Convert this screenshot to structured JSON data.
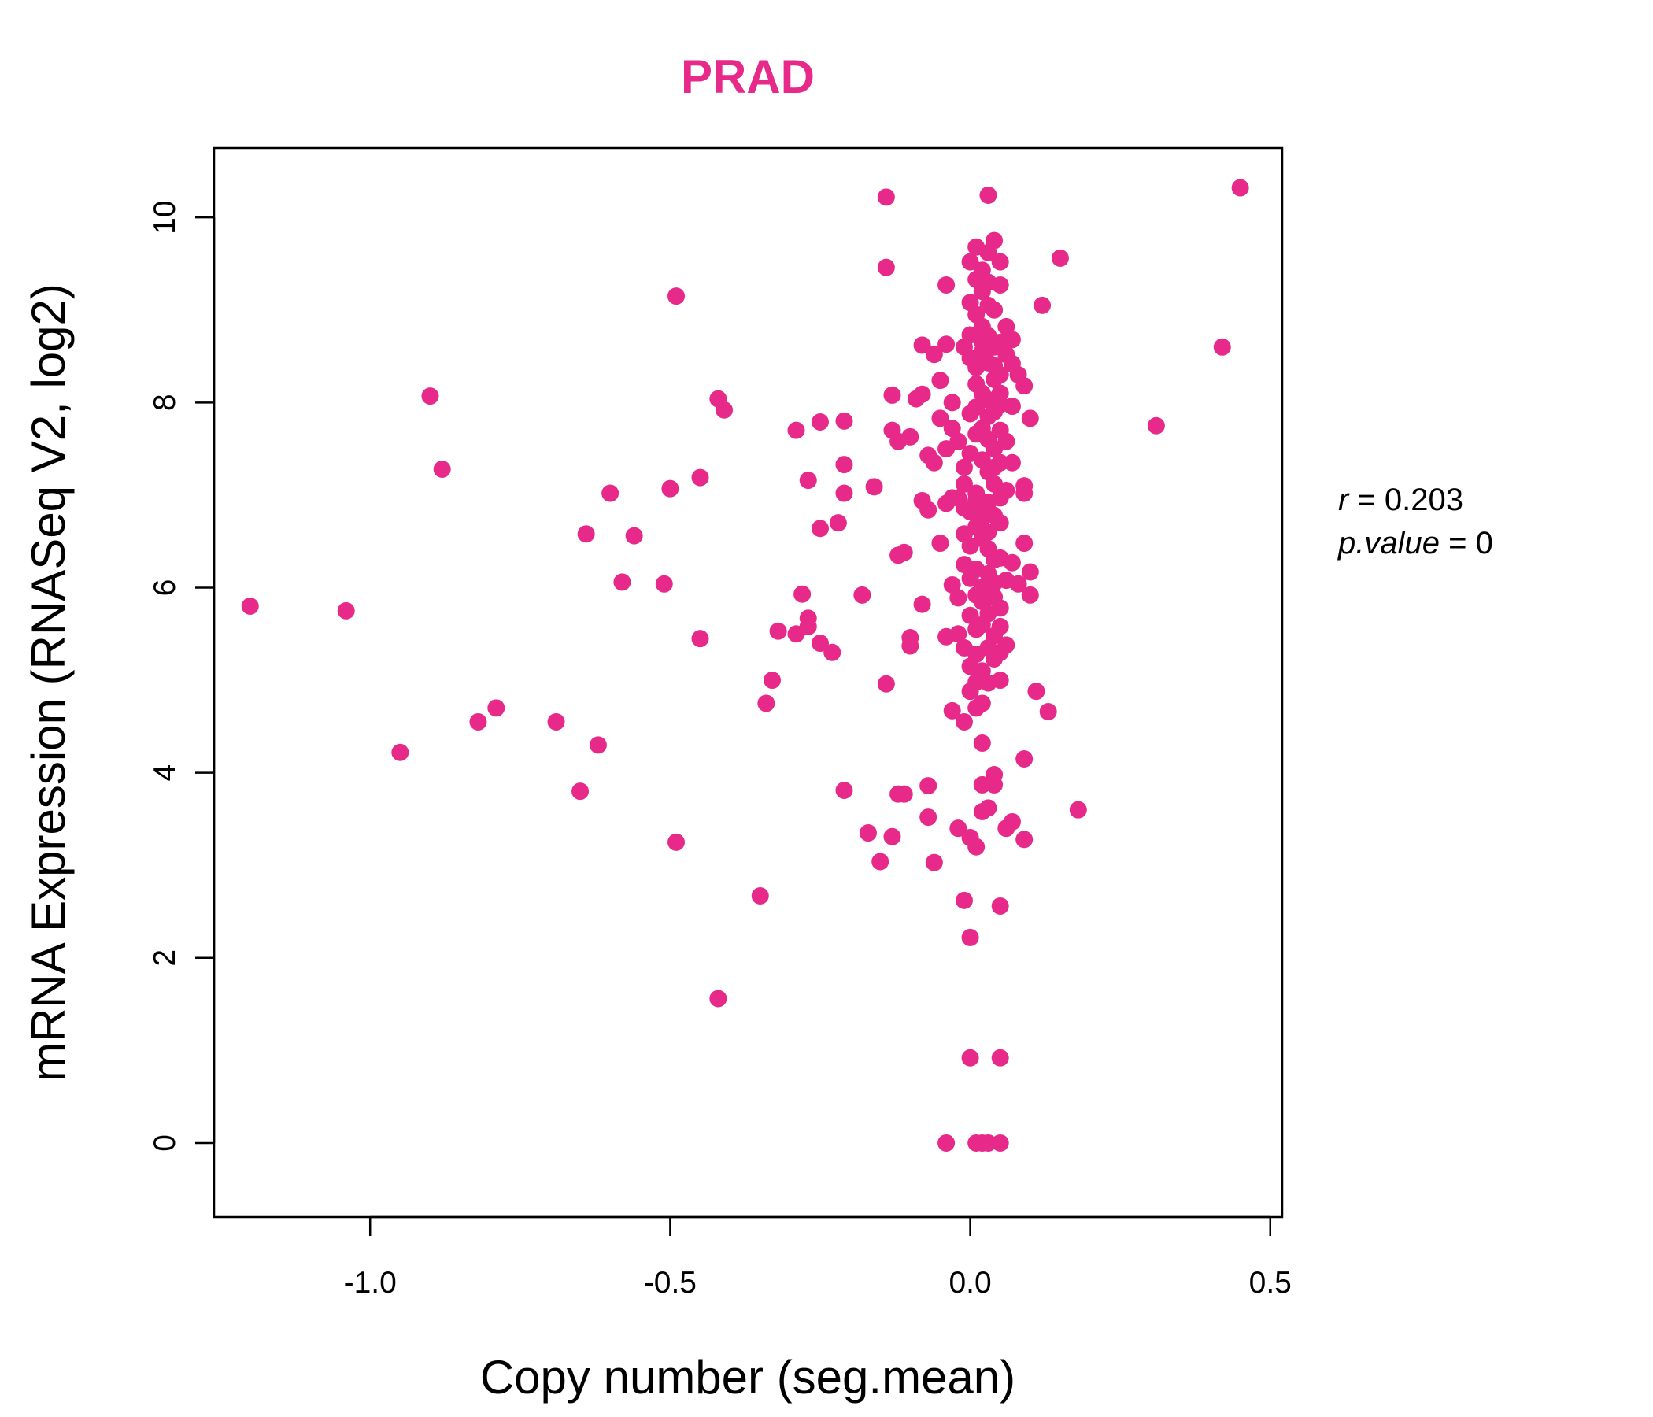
{
  "chart_data": {
    "type": "scatter",
    "title": "PRAD",
    "xlabel": "Copy number (seg.mean)",
    "ylabel": "mRNA Expression (RNASeq V2, log2)",
    "xlim": [
      -1.26,
      0.52
    ],
    "ylim": [
      -0.8,
      10.75
    ],
    "x_ticks": [
      -1.0,
      -0.5,
      0.0,
      0.5
    ],
    "x_tick_labels": [
      "-1.0",
      "-0.5",
      "0.0",
      "0.5"
    ],
    "y_ticks": [
      0,
      2,
      4,
      6,
      8,
      10
    ],
    "y_tick_labels": [
      "0",
      "2",
      "4",
      "6",
      "8",
      "10"
    ],
    "grid": false,
    "legend": "none",
    "point_color": "#E7298A",
    "annotation": {
      "r_label": "r",
      "r_value": "0.203",
      "p_label": "p.value",
      "p_value": "0"
    },
    "points": [
      [
        -1.2,
        5.8
      ],
      [
        -1.04,
        5.75
      ],
      [
        -0.95,
        4.22
      ],
      [
        -0.9,
        8.07
      ],
      [
        -0.88,
        7.28
      ],
      [
        -0.82,
        4.55
      ],
      [
        -0.79,
        4.7
      ],
      [
        -0.69,
        4.55
      ],
      [
        -0.65,
        3.8
      ],
      [
        -0.64,
        6.58
      ],
      [
        -0.62,
        4.3
      ],
      [
        -0.6,
        7.02
      ],
      [
        -0.58,
        6.06
      ],
      [
        -0.56,
        6.56
      ],
      [
        -0.51,
        6.04
      ],
      [
        -0.5,
        7.07
      ],
      [
        -0.49,
        9.15
      ],
      [
        -0.49,
        3.25
      ],
      [
        -0.45,
        5.45
      ],
      [
        -0.45,
        7.19
      ],
      [
        -0.42,
        8.04
      ],
      [
        -0.42,
        1.56
      ],
      [
        -0.41,
        7.92
      ],
      [
        -0.35,
        2.67
      ],
      [
        -0.34,
        4.75
      ],
      [
        -0.33,
        5.0
      ],
      [
        -0.32,
        5.53
      ],
      [
        -0.29,
        7.7
      ],
      [
        -0.29,
        5.5
      ],
      [
        -0.28,
        5.93
      ],
      [
        -0.27,
        7.16
      ],
      [
        -0.27,
        5.67
      ],
      [
        -0.27,
        5.58
      ],
      [
        -0.25,
        7.79
      ],
      [
        -0.25,
        6.64
      ],
      [
        -0.25,
        5.4
      ],
      [
        -0.23,
        5.3
      ],
      [
        -0.22,
        6.7
      ],
      [
        -0.21,
        7.33
      ],
      [
        -0.21,
        7.8
      ],
      [
        -0.21,
        7.02
      ],
      [
        -0.21,
        3.81
      ],
      [
        -0.18,
        5.92
      ],
      [
        -0.17,
        3.35
      ],
      [
        -0.16,
        7.09
      ],
      [
        -0.15,
        3.04
      ],
      [
        -0.14,
        10.22
      ],
      [
        -0.14,
        9.46
      ],
      [
        -0.14,
        4.96
      ],
      [
        -0.13,
        3.31
      ],
      [
        -0.13,
        7.7
      ],
      [
        -0.13,
        8.08
      ],
      [
        -0.12,
        6.35
      ],
      [
        -0.12,
        7.58
      ],
      [
        -0.12,
        3.77
      ],
      [
        -0.11,
        3.77
      ],
      [
        -0.11,
        6.38
      ],
      [
        -0.1,
        7.63
      ],
      [
        -0.1,
        5.46
      ],
      [
        -0.1,
        5.37
      ],
      [
        -0.09,
        8.04
      ],
      [
        -0.08,
        8.09
      ],
      [
        -0.08,
        6.94
      ],
      [
        -0.08,
        5.82
      ],
      [
        -0.08,
        8.62
      ],
      [
        -0.07,
        3.52
      ],
      [
        -0.07,
        6.84
      ],
      [
        -0.07,
        7.43
      ],
      [
        -0.07,
        3.86
      ],
      [
        -0.06,
        3.03
      ],
      [
        -0.06,
        7.35
      ],
      [
        -0.06,
        8.52
      ],
      [
        -0.05,
        8.24
      ],
      [
        -0.05,
        6.48
      ],
      [
        -0.05,
        7.83
      ],
      [
        -0.04,
        5.47
      ],
      [
        -0.04,
        6.91
      ],
      [
        -0.04,
        7.5
      ],
      [
        -0.04,
        0.0
      ],
      [
        -0.04,
        9.27
      ],
      [
        -0.04,
        8.63
      ],
      [
        -0.03,
        6.03
      ],
      [
        -0.03,
        7.72
      ],
      [
        -0.03,
        6.97
      ],
      [
        -0.03,
        4.67
      ],
      [
        -0.03,
        8.0
      ],
      [
        -0.02,
        5.5
      ],
      [
        -0.02,
        6.97
      ],
      [
        -0.02,
        7.58
      ],
      [
        -0.02,
        3.4
      ],
      [
        -0.02,
        5.89
      ],
      [
        -0.01,
        6.58
      ],
      [
        -0.01,
        6.86
      ],
      [
        -0.01,
        7.12
      ],
      [
        -0.01,
        8.6
      ],
      [
        -0.01,
        4.55
      ],
      [
        -0.01,
        5.35
      ],
      [
        -0.01,
        6.25
      ],
      [
        -0.01,
        7.3
      ],
      [
        -0.01,
        2.62
      ],
      [
        0.0,
        9.52
      ],
      [
        0.0,
        8.48
      ],
      [
        0.0,
        7.88
      ],
      [
        0.0,
        7.45
      ],
      [
        0.0,
        6.82
      ],
      [
        0.0,
        6.1
      ],
      [
        0.0,
        5.15
      ],
      [
        0.0,
        4.88
      ],
      [
        0.0,
        3.3
      ],
      [
        0.0,
        2.22
      ],
      [
        0.0,
        0.92
      ],
      [
        0.0,
        8.73
      ],
      [
        0.0,
        6.45
      ],
      [
        0.0,
        5.7
      ],
      [
        0.0,
        9.08
      ],
      [
        0.01,
        9.68
      ],
      [
        0.01,
        9.33
      ],
      [
        0.01,
        8.95
      ],
      [
        0.01,
        8.2
      ],
      [
        0.01,
        7.66
      ],
      [
        0.01,
        7.02
      ],
      [
        0.01,
        6.66
      ],
      [
        0.01,
        6.2
      ],
      [
        0.01,
        5.55
      ],
      [
        0.01,
        4.98
      ],
      [
        0.01,
        4.7
      ],
      [
        0.01,
        3.2
      ],
      [
        0.01,
        0.0
      ],
      [
        0.01,
        8.38
      ],
      [
        0.01,
        7.95
      ],
      [
        0.01,
        6.95
      ],
      [
        0.01,
        5.92
      ],
      [
        0.01,
        5.28
      ],
      [
        0.02,
        9.43
      ],
      [
        0.02,
        9.2
      ],
      [
        0.02,
        8.82
      ],
      [
        0.02,
        8.55
      ],
      [
        0.02,
        8.1
      ],
      [
        0.02,
        7.72
      ],
      [
        0.02,
        7.38
      ],
      [
        0.02,
        6.9
      ],
      [
        0.02,
        6.53
      ],
      [
        0.02,
        6.0
      ],
      [
        0.02,
        5.6
      ],
      [
        0.02,
        5.1
      ],
      [
        0.02,
        4.32
      ],
      [
        0.02,
        3.87
      ],
      [
        0.02,
        3.58
      ],
      [
        0.02,
        0.0
      ],
      [
        0.02,
        8.66
      ],
      [
        0.02,
        6.75
      ],
      [
        0.02,
        5.85
      ],
      [
        0.02,
        4.75
      ],
      [
        0.03,
        9.62
      ],
      [
        0.03,
        9.3
      ],
      [
        0.03,
        9.05
      ],
      [
        0.03,
        8.72
      ],
      [
        0.03,
        8.43
      ],
      [
        0.03,
        8.03
      ],
      [
        0.03,
        7.6
      ],
      [
        0.03,
        7.25
      ],
      [
        0.03,
        6.92
      ],
      [
        0.03,
        6.42
      ],
      [
        0.03,
        6.15
      ],
      [
        0.03,
        5.72
      ],
      [
        0.03,
        5.35
      ],
      [
        0.03,
        4.97
      ],
      [
        0.03,
        3.62
      ],
      [
        0.03,
        10.24
      ],
      [
        0.03,
        0.0
      ],
      [
        0.03,
        7.85
      ],
      [
        0.03,
        6.6
      ],
      [
        0.04,
        9.75
      ],
      [
        0.04,
        9.0
      ],
      [
        0.04,
        8.6
      ],
      [
        0.04,
        8.25
      ],
      [
        0.04,
        7.9
      ],
      [
        0.04,
        7.5
      ],
      [
        0.04,
        7.12
      ],
      [
        0.04,
        6.78
      ],
      [
        0.04,
        6.3
      ],
      [
        0.04,
        5.9
      ],
      [
        0.04,
        5.48
      ],
      [
        0.04,
        5.23
      ],
      [
        0.04,
        3.98
      ],
      [
        0.04,
        3.87
      ],
      [
        0.04,
        8.4
      ],
      [
        0.04,
        7.3
      ],
      [
        0.04,
        6.05
      ],
      [
        0.05,
        9.52
      ],
      [
        0.05,
        9.27
      ],
      [
        0.05,
        8.65
      ],
      [
        0.05,
        8.3
      ],
      [
        0.05,
        7.98
      ],
      [
        0.05,
        7.7
      ],
      [
        0.05,
        7.35
      ],
      [
        0.05,
        6.97
      ],
      [
        0.05,
        6.7
      ],
      [
        0.05,
        6.32
      ],
      [
        0.05,
        5.78
      ],
      [
        0.05,
        5.3
      ],
      [
        0.05,
        5.0
      ],
      [
        0.05,
        2.56
      ],
      [
        0.05,
        0.92
      ],
      [
        0.05,
        0.0
      ],
      [
        0.05,
        8.1
      ],
      [
        0.05,
        5.58
      ],
      [
        0.06,
        8.82
      ],
      [
        0.06,
        8.52
      ],
      [
        0.06,
        7.58
      ],
      [
        0.06,
        7.05
      ],
      [
        0.06,
        6.08
      ],
      [
        0.06,
        5.38
      ],
      [
        0.06,
        3.4
      ],
      [
        0.07,
        8.68
      ],
      [
        0.07,
        8.42
      ],
      [
        0.07,
        7.96
      ],
      [
        0.07,
        7.35
      ],
      [
        0.07,
        6.27
      ],
      [
        0.07,
        3.47
      ],
      [
        0.08,
        8.3
      ],
      [
        0.08,
        6.04
      ],
      [
        0.09,
        8.18
      ],
      [
        0.09,
        7.1
      ],
      [
        0.09,
        7.02
      ],
      [
        0.09,
        6.48
      ],
      [
        0.09,
        4.15
      ],
      [
        0.09,
        3.28
      ],
      [
        0.1,
        7.83
      ],
      [
        0.1,
        6.17
      ],
      [
        0.1,
        5.92
      ],
      [
        0.11,
        4.88
      ],
      [
        0.12,
        9.05
      ],
      [
        0.13,
        4.66
      ],
      [
        0.15,
        9.56
      ],
      [
        0.18,
        3.6
      ],
      [
        0.31,
        7.75
      ],
      [
        0.42,
        8.6
      ],
      [
        0.45,
        10.32
      ]
    ]
  }
}
